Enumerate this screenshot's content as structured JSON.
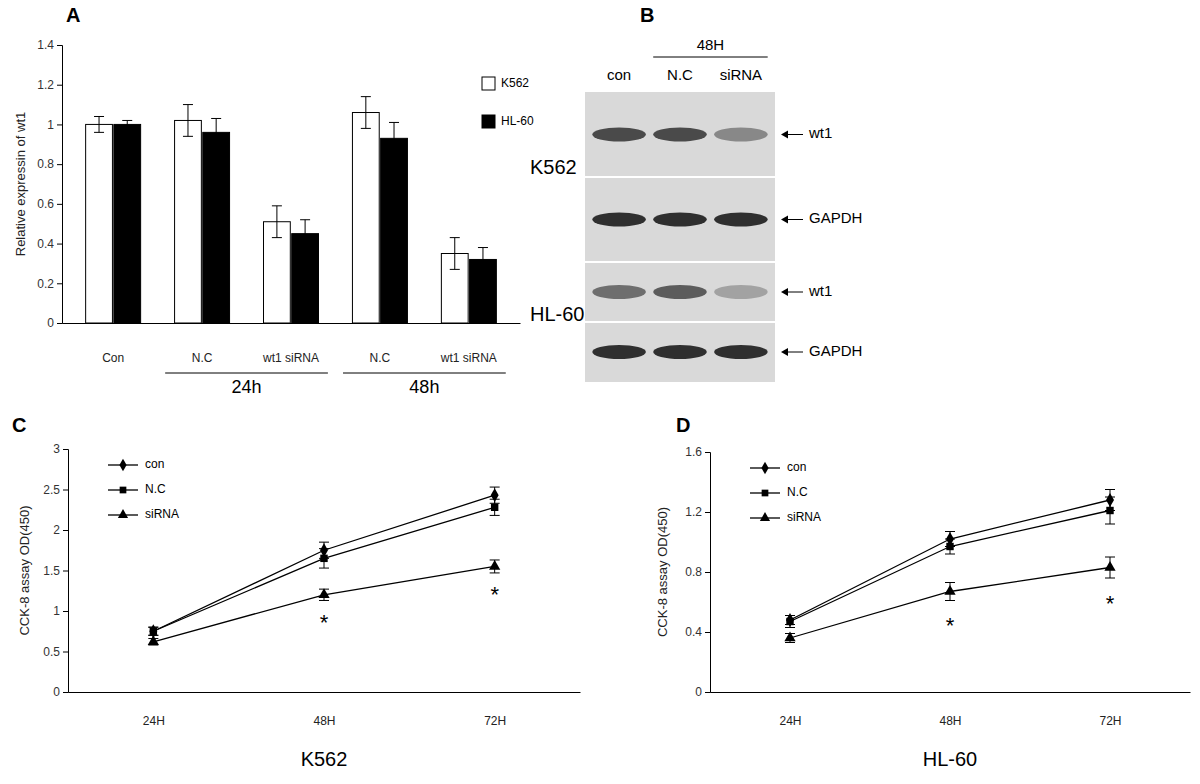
{
  "chart_data": [
    {
      "type": "bar",
      "panel_label": "A",
      "y_label": "Relative expressin of wt1",
      "categories": [
        "Con",
        "N.C",
        "wt1 siRNA",
        "N.C",
        "wt1 siRNA"
      ],
      "category_groups": [
        null,
        "24h",
        "24h",
        "48h",
        "48h"
      ],
      "series": [
        {
          "name": "K562",
          "color": "#ffffff",
          "values": [
            1.0,
            1.02,
            0.51,
            1.06,
            0.35
          ],
          "errors": [
            0.04,
            0.08,
            0.08,
            0.08,
            0.08
          ]
        },
        {
          "name": "HL-60",
          "color": "#000000",
          "values": [
            1.0,
            0.96,
            0.45,
            0.93,
            0.32
          ],
          "errors": [
            0.02,
            0.07,
            0.07,
            0.08,
            0.06
          ]
        }
      ],
      "ylim": [
        0,
        1.4
      ],
      "yticks": [
        0,
        0.2,
        0.4,
        0.6,
        0.8,
        1,
        1.2,
        1.4
      ],
      "legend": "top-right"
    },
    {
      "type": "line",
      "panel_label": "C",
      "x_label": "K562",
      "y_label": "CCK-8 assay OD(450)",
      "categories": [
        "24H",
        "48H",
        "72H"
      ],
      "series": [
        {
          "name": "con",
          "color": "#000000",
          "marker": "diamond",
          "values": [
            0.75,
            1.75,
            2.43
          ],
          "errors": [
            0.05,
            0.1,
            0.1
          ]
        },
        {
          "name": "N.C",
          "color": "#000000",
          "marker": "square",
          "values": [
            0.75,
            1.65,
            2.28
          ],
          "errors": [
            0.05,
            0.12,
            0.1
          ]
        },
        {
          "name": "siRNA",
          "color": "#000000",
          "marker": "triangle",
          "values": [
            0.62,
            1.2,
            1.55
          ],
          "errors": [
            0.04,
            0.07,
            0.08
          ]
        }
      ],
      "ylim": [
        0,
        3
      ],
      "yticks": [
        0,
        0.5,
        1,
        1.5,
        2,
        2.5,
        3
      ],
      "legend": "top-left",
      "annotations": [
        {
          "text": "*",
          "x": "48H",
          "y": 0.84
        },
        {
          "text": "*",
          "x": "72H",
          "y": 1.18
        }
      ]
    },
    {
      "type": "line",
      "panel_label": "D",
      "x_label": "HL-60",
      "y_label": "CCK-8 assay OD(450)",
      "categories": [
        "24H",
        "48H",
        "72H"
      ],
      "series": [
        {
          "name": "con",
          "color": "#000000",
          "marker": "diamond",
          "values": [
            0.48,
            1.02,
            1.28
          ],
          "errors": [
            0.03,
            0.05,
            0.07
          ]
        },
        {
          "name": "N.C",
          "color": "#000000",
          "marker": "square",
          "values": [
            0.47,
            0.97,
            1.21
          ],
          "errors": [
            0.04,
            0.05,
            0.09
          ]
        },
        {
          "name": "siRNA",
          "color": "#000000",
          "marker": "triangle",
          "values": [
            0.36,
            0.67,
            0.83
          ],
          "errors": [
            0.03,
            0.06,
            0.07
          ]
        }
      ],
      "ylim": [
        0,
        1.6
      ],
      "yticks": [
        0,
        0.4,
        0.8,
        1.2,
        1.6
      ],
      "legend": "top-left",
      "annotations": [
        {
          "text": "*",
          "x": "48H",
          "y": 0.43
        },
        {
          "text": "*",
          "x": "72H",
          "y": 0.58
        }
      ]
    }
  ],
  "blot": {
    "panel_label": "B",
    "lanes": [
      "con",
      "N.C",
      "siRNA"
    ],
    "lane_groups": [
      null,
      "48H",
      "48H"
    ],
    "blocks": [
      {
        "cell_line": "K562",
        "rows": [
          {
            "protein": "wt1",
            "intensity": [
              0.8,
              0.8,
              0.45
            ]
          },
          {
            "protein": "GAPDH",
            "intensity": [
              0.95,
              0.95,
              0.95
            ]
          }
        ]
      },
      {
        "cell_line": "HL-60",
        "rows": [
          {
            "protein": "wt1",
            "intensity": [
              0.6,
              0.7,
              0.3
            ]
          },
          {
            "protein": "GAPDH",
            "intensity": [
              0.95,
              0.95,
              0.95
            ]
          }
        ]
      }
    ]
  }
}
